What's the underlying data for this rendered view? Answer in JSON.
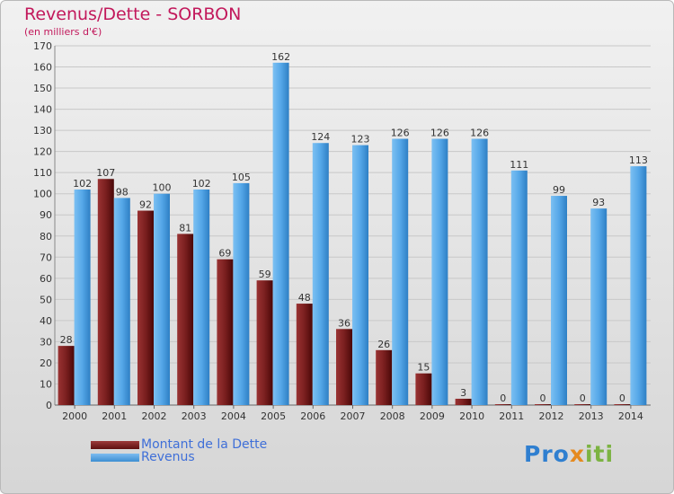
{
  "title": "Revenus/Dette - SORBON",
  "subtitle": "(en milliers d'€)",
  "colors": {
    "title": "#c2185b",
    "debt": "#7a1f1f",
    "revenue": "#4fa3e6",
    "legend_text": "#3f6fd8"
  },
  "logo": {
    "part1": "Pro",
    "part2": "x",
    "part3": "iti"
  },
  "chart_data": {
    "type": "bar",
    "title": "Revenus/Dette - SORBON",
    "subtitle": "(en milliers d'€)",
    "categories": [
      "2000",
      "2001",
      "2002",
      "2003",
      "2004",
      "2005",
      "2006",
      "2007",
      "2008",
      "2009",
      "2010",
      "2011",
      "2012",
      "2013",
      "2014"
    ],
    "series": [
      {
        "name": "Montant de la Dette",
        "color": "#7a1f1f",
        "values": [
          28,
          107,
          92,
          81,
          69,
          59,
          48,
          36,
          26,
          15,
          3,
          0,
          0,
          0,
          0
        ]
      },
      {
        "name": "Revenus",
        "color": "#4fa3e6",
        "values": [
          102,
          98,
          100,
          102,
          105,
          162,
          124,
          123,
          126,
          126,
          126,
          111,
          99,
          93,
          113
        ]
      }
    ],
    "ylim": [
      0,
      170
    ],
    "yticks": [
      0,
      10,
      20,
      30,
      40,
      50,
      60,
      70,
      80,
      90,
      100,
      110,
      120,
      130,
      140,
      150,
      160,
      170
    ],
    "grid": true,
    "legend": "bottom-left"
  }
}
